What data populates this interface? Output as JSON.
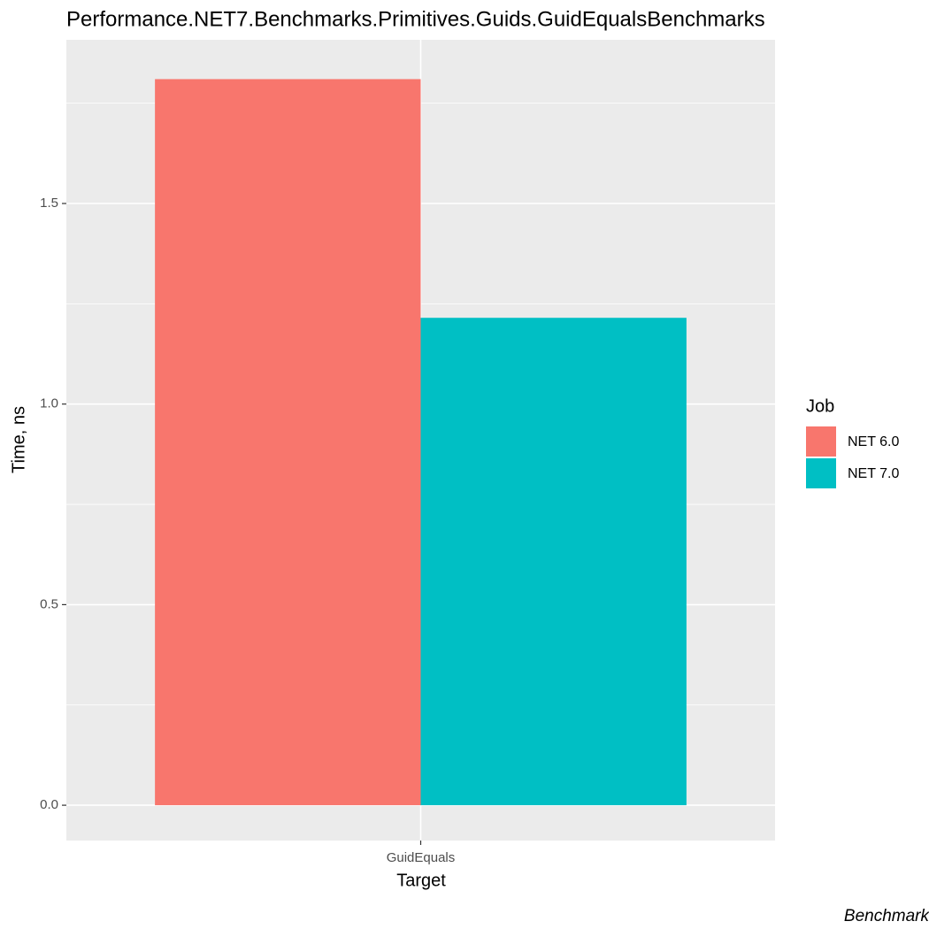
{
  "chart_data": {
    "type": "bar",
    "title": "Performance.NET7.Benchmarks.Primitives.Guids.GuidEqualsBenchmarks",
    "x_label": "Target",
    "y_label": "Time, ns",
    "categories": [
      "GuidEquals"
    ],
    "series": [
      {
        "name": "NET 6.0",
        "color": "#F8766D",
        "values": [
          1.81
        ]
      },
      {
        "name": "NET 7.0",
        "color": "#00BFC4",
        "values": [
          1.215
        ]
      }
    ],
    "legend_title": "Job",
    "legend_position": "right",
    "ylim": [
      -0.088,
      1.908
    ],
    "yticks": [
      {
        "value": 0,
        "label": "0.0"
      },
      0.5,
      {
        "value": 1,
        "label": "1.0"
      },
      1.5
    ],
    "minor_yticks": [
      0.25,
      0.75,
      1.25,
      1.75
    ],
    "grid": true,
    "caption": "Benchmark"
  }
}
